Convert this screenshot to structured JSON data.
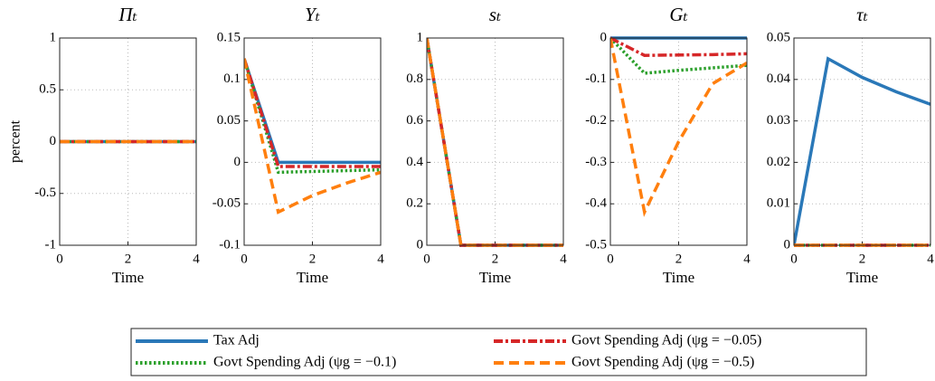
{
  "chart_data": [
    {
      "type": "line",
      "title": "Πₜ",
      "ylabel": "percent",
      "xlabel": "Time",
      "x": [
        0,
        1,
        2,
        3,
        4
      ],
      "xlim": [
        0,
        4
      ],
      "xticks": [
        0,
        2,
        4
      ],
      "ylim": [
        -1,
        1
      ],
      "yticks": [
        -1,
        -0.5,
        0,
        0.5,
        1
      ],
      "grid": true,
      "series": [
        {
          "name": "Tax Adj",
          "color": "#2a78b8",
          "dash": "solid",
          "values": [
            0,
            0,
            0,
            0,
            0
          ]
        },
        {
          "name": "Govt Spending Adj (ψg = −0.1)",
          "color": "#2ca02c",
          "dash": "dotted",
          "values": [
            0,
            0,
            0,
            0,
            0
          ]
        },
        {
          "name": "Govt Spending Adj (ψg = −0.05)",
          "color": "#d62728",
          "dash": "dashdot",
          "values": [
            0,
            0,
            0,
            0,
            0
          ]
        },
        {
          "name": "Govt Spending Adj (ψg = −0.5)",
          "color": "#ff7f0e",
          "dash": "dashed",
          "values": [
            0,
            0,
            0,
            0,
            0
          ]
        }
      ]
    },
    {
      "type": "line",
      "title": "Yₜ",
      "xlabel": "Time",
      "x": [
        0,
        1,
        2,
        3,
        4
      ],
      "xlim": [
        0,
        4
      ],
      "xticks": [
        0,
        2,
        4
      ],
      "ylim": [
        -0.1,
        0.15
      ],
      "yticks": [
        -0.1,
        -0.05,
        0,
        0.05,
        0.1,
        0.15
      ],
      "grid": true,
      "series": [
        {
          "name": "Tax Adj",
          "color": "#2a78b8",
          "dash": "solid",
          "values": [
            0.125,
            0,
            0,
            0,
            0
          ]
        },
        {
          "name": "Govt Spending Adj (ψg = −0.1)",
          "color": "#2ca02c",
          "dash": "dotted",
          "values": [
            0.125,
            -0.012,
            -0.011,
            -0.01,
            -0.009
          ]
        },
        {
          "name": "Govt Spending Adj (ψg = −0.05)",
          "color": "#d62728",
          "dash": "dashdot",
          "values": [
            0.125,
            -0.005,
            -0.005,
            -0.005,
            -0.005
          ]
        },
        {
          "name": "Govt Spending Adj (ψg = −0.5)",
          "color": "#ff7f0e",
          "dash": "dashed",
          "values": [
            0.125,
            -0.06,
            -0.04,
            -0.025,
            -0.012
          ]
        }
      ]
    },
    {
      "type": "line",
      "title": "sₜ",
      "xlabel": "Time",
      "x": [
        0,
        1,
        2,
        3,
        4
      ],
      "xlim": [
        0,
        4
      ],
      "xticks": [
        0,
        2,
        4
      ],
      "ylim": [
        0,
        1
      ],
      "yticks": [
        0,
        0.2,
        0.4,
        0.6,
        0.8,
        1
      ],
      "grid": true,
      "series": [
        {
          "name": "Tax Adj",
          "color": "#2a78b8",
          "dash": "solid",
          "values": [
            1,
            0,
            0,
            0,
            0
          ]
        },
        {
          "name": "Govt Spending Adj (ψg = −0.1)",
          "color": "#2ca02c",
          "dash": "dotted",
          "values": [
            1,
            0,
            0,
            0,
            0
          ]
        },
        {
          "name": "Govt Spending Adj (ψg = −0.05)",
          "color": "#d62728",
          "dash": "dashdot",
          "values": [
            1,
            0,
            0,
            0,
            0
          ]
        },
        {
          "name": "Govt Spending Adj (ψg = −0.5)",
          "color": "#ff7f0e",
          "dash": "dashed",
          "values": [
            1,
            0,
            0,
            0,
            0
          ]
        }
      ]
    },
    {
      "type": "line",
      "title": "Gₜ",
      "xlabel": "Time",
      "x": [
        0,
        1,
        2,
        3,
        4
      ],
      "xlim": [
        0,
        4
      ],
      "xticks": [
        0,
        2,
        4
      ],
      "ylim": [
        -0.5,
        0
      ],
      "yticks": [
        -0.5,
        -0.4,
        -0.3,
        -0.2,
        -0.1,
        0
      ],
      "grid": true,
      "series": [
        {
          "name": "Tax Adj",
          "color": "#2a78b8",
          "dash": "solid",
          "values": [
            0,
            0,
            0,
            0,
            0
          ]
        },
        {
          "name": "Govt Spending Adj (ψg = −0.1)",
          "color": "#2ca02c",
          "dash": "dotted",
          "values": [
            0,
            -0.085,
            -0.078,
            -0.072,
            -0.066
          ]
        },
        {
          "name": "Govt Spending Adj (ψg = −0.05)",
          "color": "#d62728",
          "dash": "dashdot",
          "values": [
            0,
            -0.042,
            -0.041,
            -0.04,
            -0.038
          ]
        },
        {
          "name": "Govt Spending Adj (ψg = −0.5)",
          "color": "#ff7f0e",
          "dash": "dashed",
          "values": [
            0,
            -0.42,
            -0.25,
            -0.11,
            -0.06
          ]
        }
      ]
    },
    {
      "type": "line",
      "title": "τₜ",
      "xlabel": "Time",
      "x": [
        0,
        1,
        2,
        3,
        4
      ],
      "xlim": [
        0,
        4
      ],
      "xticks": [
        0,
        2,
        4
      ],
      "ylim": [
        0,
        0.05
      ],
      "yticks": [
        0,
        0.01,
        0.02,
        0.03,
        0.04,
        0.05
      ],
      "grid": true,
      "series": [
        {
          "name": "Tax Adj",
          "color": "#2a78b8",
          "dash": "solid",
          "values": [
            0,
            0.045,
            0.0405,
            0.037,
            0.034
          ]
        },
        {
          "name": "Govt Spending Adj (ψg = −0.1)",
          "color": "#2ca02c",
          "dash": "dotted",
          "values": [
            0,
            0,
            0,
            0,
            0
          ]
        },
        {
          "name": "Govt Spending Adj (ψg = −0.05)",
          "color": "#d62728",
          "dash": "dashdot",
          "values": [
            0,
            0,
            0,
            0,
            0
          ]
        },
        {
          "name": "Govt Spending Adj (ψg = −0.5)",
          "color": "#ff7f0e",
          "dash": "dashed",
          "values": [
            0,
            0,
            0,
            0,
            0
          ]
        }
      ]
    }
  ]
}
